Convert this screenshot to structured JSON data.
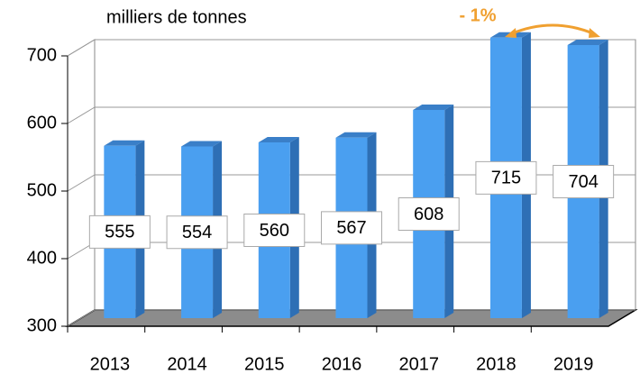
{
  "chart_data": {
    "type": "bar3d",
    "ylabel": "milliers de tonnes",
    "categories": [
      "2013",
      "2014",
      "2015",
      "2016",
      "2017",
      "2018",
      "2019"
    ],
    "values": [
      555,
      554,
      560,
      567,
      608,
      715,
      704
    ],
    "color": "#4a9ff0",
    "ylim": [
      300,
      700
    ],
    "yticks": [
      300,
      400,
      500,
      600,
      700
    ],
    "grid": true,
    "annotations": [
      "- 1%"
    ],
    "annotation_color": "#f0a030"
  }
}
